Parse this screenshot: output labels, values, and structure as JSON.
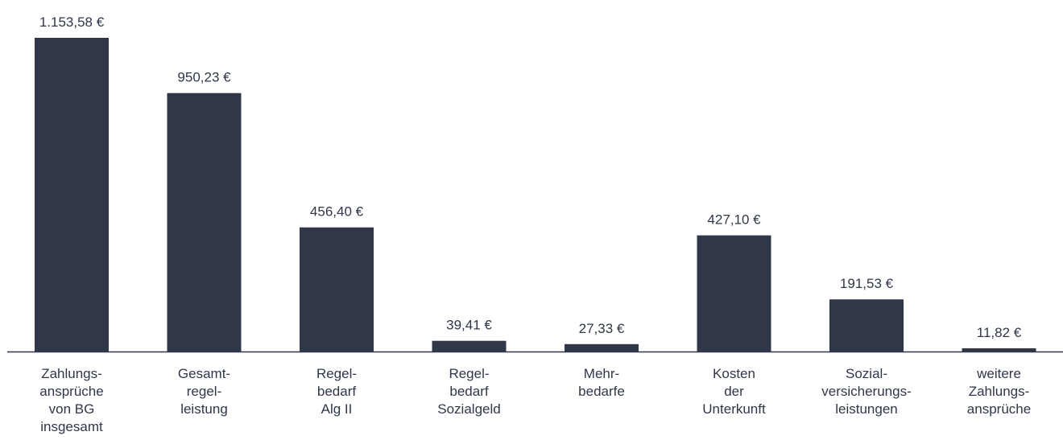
{
  "chart_data": {
    "type": "bar",
    "title": "",
    "xlabel": "",
    "ylabel": "",
    "ylim": [
      0,
      1153.58
    ],
    "grid": false,
    "legend": "none",
    "colors": {
      "bar": "#2f3749",
      "text": "#2f3749",
      "axis": "#2f3749",
      "background": "#ffffff"
    },
    "categories": [
      [
        "Zahlungs-",
        "ansprüche",
        "von BG",
        "insgesamt"
      ],
      [
        "Gesamt-",
        "regel-",
        "leistung"
      ],
      [
        "Regel-",
        "bedarf",
        "Alg II"
      ],
      [
        "Regel-",
        "bedarf",
        "Sozialgeld"
      ],
      [
        "Mehr-",
        "bedarfe"
      ],
      [
        "Kosten",
        "der",
        "Unterkunft"
      ],
      [
        "Sozial-",
        "versicherungs-",
        "leistungen"
      ],
      [
        "weitere",
        "Zahlungs-",
        "ansprüche"
      ]
    ],
    "values": [
      1153.58,
      950.23,
      456.4,
      39.41,
      27.33,
      427.1,
      191.53,
      11.82
    ],
    "value_labels": [
      "1.153,58 €",
      "950,23 €",
      "456,40 €",
      "39,41 €",
      "27,33 €",
      "427,10 €",
      "191,53 €",
      "11,82 €"
    ]
  }
}
